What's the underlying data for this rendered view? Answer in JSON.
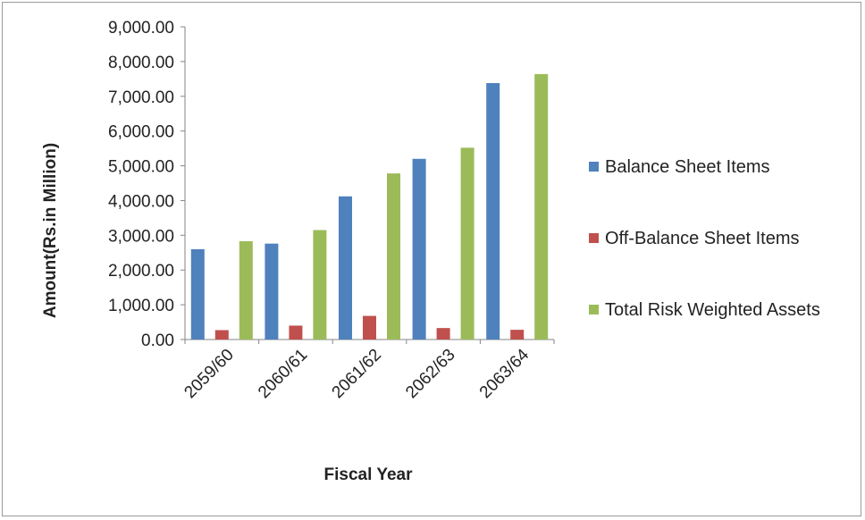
{
  "chart_data": {
    "type": "bar",
    "title": "",
    "xlabel": "Fiscal Year",
    "ylabel": "Amount(Rs.in Million)",
    "categories": [
      "2059/60",
      "2060/61",
      "2061/62",
      "2062/63",
      "2063/64"
    ],
    "ylim": [
      0,
      9000
    ],
    "y_ticks": [
      "0.00",
      "1,000.00",
      "2,000.00",
      "3,000.00",
      "4,000.00",
      "5,000.00",
      "6,000.00",
      "7,000.00",
      "8,000.00",
      "9,000.00"
    ],
    "grid": false,
    "legend_position": "right",
    "series": [
      {
        "name": "Balance Sheet Items",
        "color": "#4f81bd",
        "values": [
          2600,
          2760,
          4120,
          5200,
          7380
        ]
      },
      {
        "name": "Off-Balance Sheet Items",
        "color": "#c0504d",
        "values": [
          270,
          400,
          680,
          330,
          280
        ]
      },
      {
        "name": "Total Risk Weighted Assets",
        "color": "#9bbb59",
        "values": [
          2830,
          3150,
          4780,
          5520,
          7640
        ]
      }
    ]
  }
}
